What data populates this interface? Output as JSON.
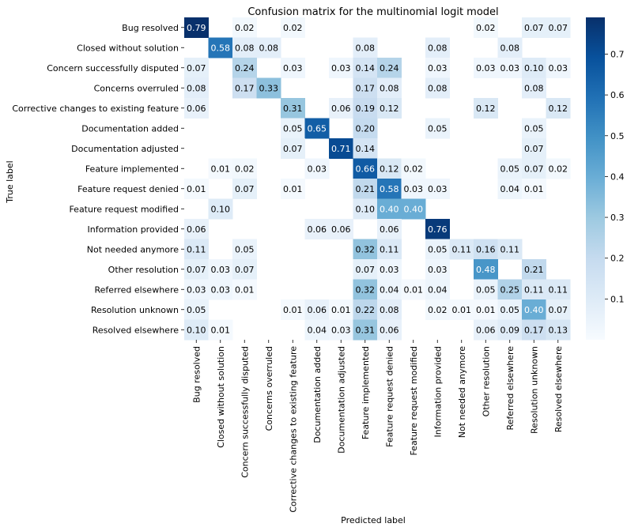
{
  "chart_data": {
    "type": "heatmap",
    "title": "Confusion matrix for the multinomial logit model",
    "xlabel": "Predicted label",
    "ylabel": "True label",
    "labels": [
      "Bug resolved",
      "Closed without solution",
      "Concern successfully disputed",
      "Concerns overruled",
      "Corrective changes to existing feature",
      "Documentation added",
      "Documentation adjusted",
      "Feature implemented",
      "Feature request denied",
      "Feature request modified",
      "Information provided",
      "Not needed anymore",
      "Other resolution",
      "Referred elsewhere",
      "Resolution unknown",
      "Resolved elsewhere"
    ],
    "matrix": [
      [
        0.79,
        null,
        0.02,
        null,
        0.02,
        null,
        null,
        null,
        null,
        null,
        null,
        null,
        0.02,
        null,
        0.07,
        0.07
      ],
      [
        null,
        0.58,
        0.08,
        0.08,
        null,
        null,
        null,
        0.08,
        null,
        null,
        0.08,
        null,
        null,
        0.08,
        null,
        null
      ],
      [
        0.07,
        null,
        0.24,
        null,
        0.03,
        null,
        0.03,
        0.14,
        0.24,
        null,
        0.03,
        null,
        0.03,
        0.03,
        0.1,
        0.03
      ],
      [
        0.08,
        null,
        0.17,
        0.33,
        null,
        null,
        null,
        0.17,
        0.08,
        null,
        0.08,
        null,
        null,
        null,
        0.08,
        null
      ],
      [
        0.06,
        null,
        null,
        null,
        0.31,
        null,
        0.06,
        0.19,
        0.12,
        null,
        null,
        null,
        0.12,
        null,
        null,
        0.12
      ],
      [
        null,
        null,
        null,
        null,
        0.05,
        0.65,
        null,
        0.2,
        null,
        null,
        0.05,
        null,
        null,
        null,
        0.05,
        null
      ],
      [
        null,
        null,
        null,
        null,
        0.07,
        null,
        0.71,
        0.14,
        null,
        null,
        null,
        null,
        null,
        null,
        0.07,
        null
      ],
      [
        null,
        0.01,
        0.02,
        null,
        null,
        0.03,
        null,
        0.66,
        0.12,
        0.02,
        null,
        null,
        null,
        0.05,
        0.07,
        0.02
      ],
      [
        0.01,
        null,
        0.07,
        null,
        0.01,
        null,
        null,
        0.21,
        0.58,
        0.03,
        0.03,
        null,
        null,
        0.04,
        0.01,
        null
      ],
      [
        null,
        0.1,
        null,
        null,
        null,
        null,
        null,
        0.1,
        0.4,
        0.4,
        null,
        null,
        null,
        null,
        null,
        null
      ],
      [
        0.06,
        null,
        null,
        null,
        null,
        0.06,
        0.06,
        null,
        0.06,
        null,
        0.76,
        null,
        null,
        null,
        null,
        null
      ],
      [
        0.11,
        null,
        0.05,
        null,
        null,
        null,
        null,
        0.32,
        0.11,
        null,
        0.05,
        0.11,
        0.16,
        0.11,
        null,
        null
      ],
      [
        0.07,
        0.03,
        0.07,
        null,
        null,
        null,
        null,
        0.07,
        0.03,
        null,
        0.03,
        null,
        0.48,
        null,
        0.21,
        null
      ],
      [
        0.03,
        0.03,
        0.01,
        null,
        null,
        null,
        null,
        0.32,
        0.04,
        0.01,
        0.04,
        null,
        0.05,
        0.25,
        0.11,
        0.11
      ],
      [
        0.05,
        null,
        null,
        null,
        0.01,
        0.06,
        0.01,
        0.22,
        0.08,
        null,
        0.02,
        0.01,
        0.01,
        0.05,
        0.4,
        0.07
      ],
      [
        0.1,
        0.01,
        null,
        null,
        null,
        0.04,
        0.03,
        0.31,
        0.06,
        null,
        null,
        null,
        0.06,
        0.09,
        0.17,
        0.13
      ]
    ],
    "colorbar": {
      "colormap": "Blues",
      "range": [
        0,
        0.79
      ],
      "ticks": [
        "0.1",
        "0.2",
        "0.3",
        "0.4",
        "0.5",
        "0.6",
        "0.7"
      ]
    }
  }
}
